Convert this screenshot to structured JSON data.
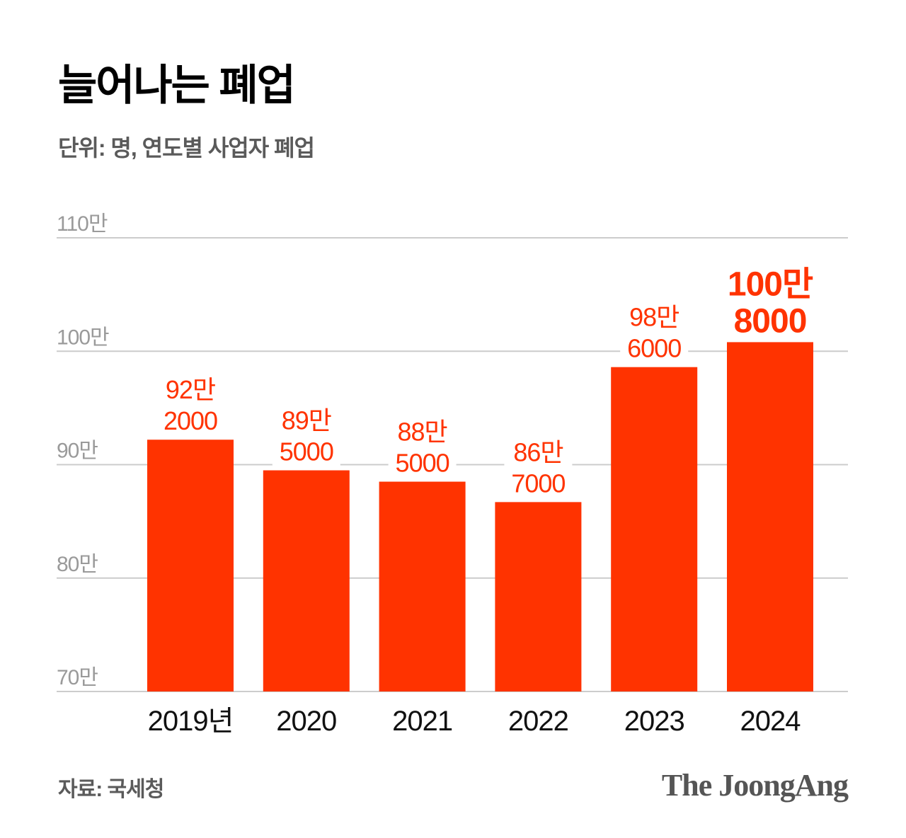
{
  "header": {
    "title": "늘어나는 폐업",
    "subtitle": "단위: 명, 연도별 사업자 폐업"
  },
  "footer": {
    "source": "자료: 국세청",
    "logo": "The JoongAng"
  },
  "colors": {
    "bar": "#ff3300",
    "label": "#ff3300",
    "grid": "#cccccc",
    "tick": "#9a9a9a",
    "category": "#111111"
  },
  "chart_data": {
    "type": "bar",
    "categories": [
      "2019년",
      "2020",
      "2021",
      "2022",
      "2023",
      "2024"
    ],
    "values": [
      922000,
      895000,
      885000,
      867000,
      986000,
      1008000
    ],
    "data_labels": [
      [
        "92만",
        "2000"
      ],
      [
        "89만",
        "5000"
      ],
      [
        "88만",
        "5000"
      ],
      [
        "86만",
        "7000"
      ],
      [
        "98만",
        "6000"
      ],
      [
        "100만",
        "8000"
      ]
    ],
    "highlight_index": 5,
    "yticks": [
      700000,
      800000,
      900000,
      1000000,
      1100000
    ],
    "ytick_labels": [
      "70만",
      "80만",
      "90만",
      "100만",
      "110만"
    ],
    "ylim": [
      700000,
      1100000
    ],
    "grid": true,
    "title": "늘어나는 폐업",
    "xlabel": "",
    "ylabel": ""
  }
}
